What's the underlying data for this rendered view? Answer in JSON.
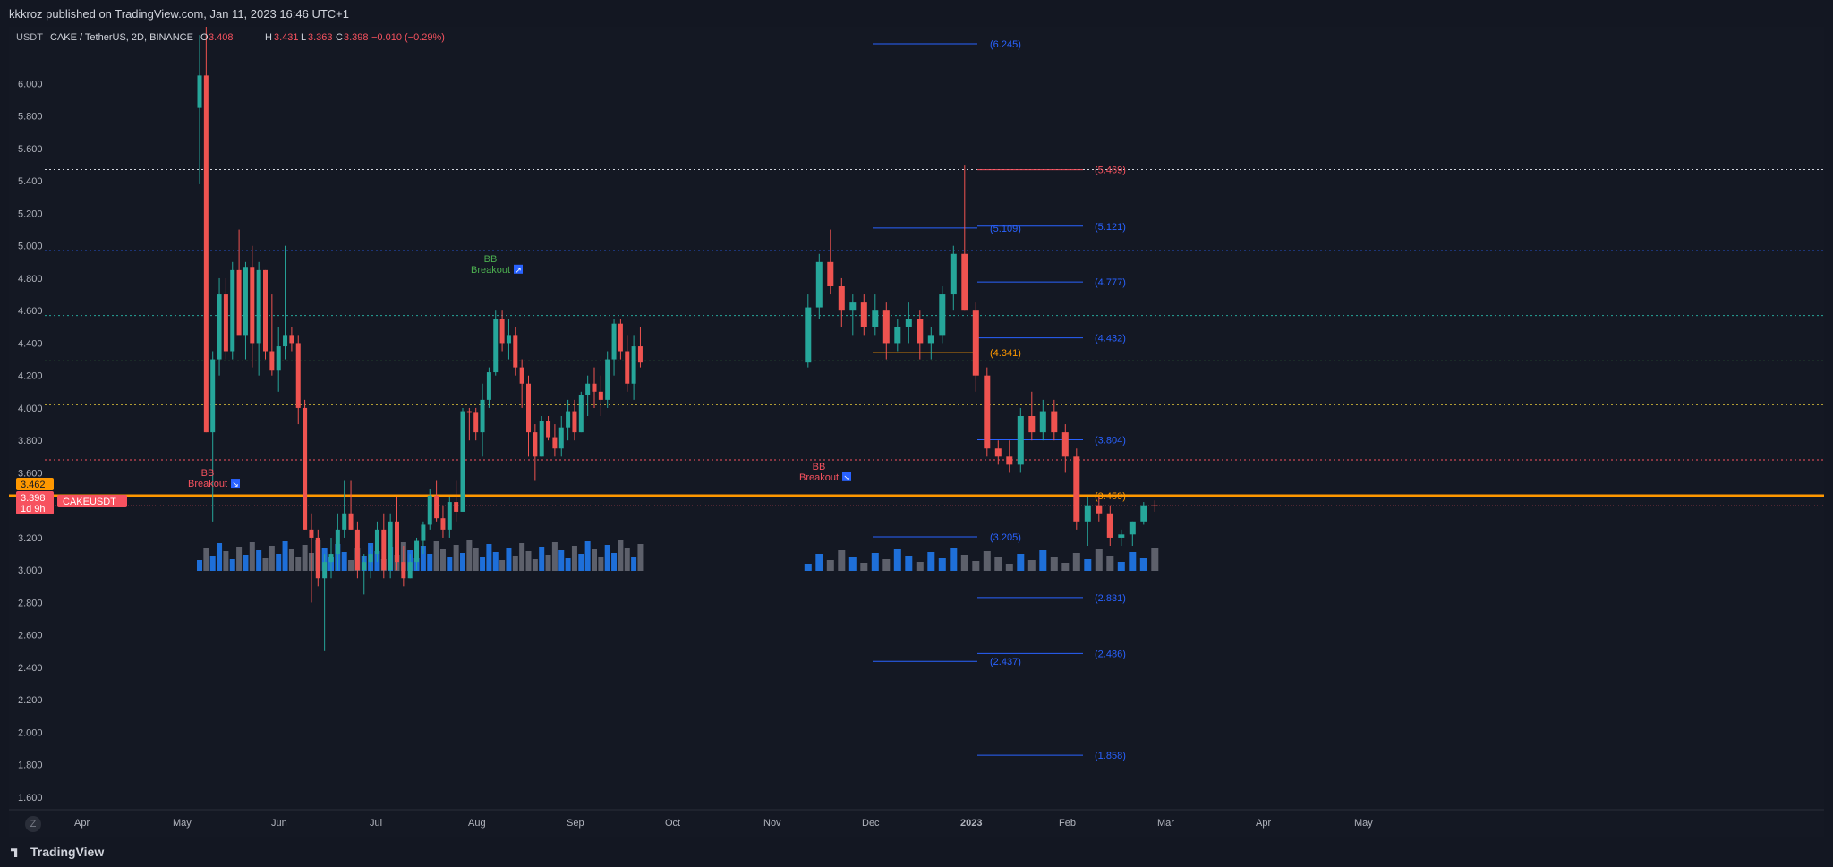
{
  "header": {
    "published": "kkkroz published on TradingView.com, Jan 11, 2023 16:46 UTC+1"
  },
  "legend": {
    "symbol": "CAKE / TetherUS, 2D, BINANCE",
    "o_label": "O",
    "o": "3.408",
    "h_label": "H",
    "h": "3.431",
    "l_label": "L",
    "l": "3.363",
    "c_label": "C",
    "c": "3.398",
    "change": "−0.010 (−0.29%)"
  },
  "price_axis": {
    "unit": "USDT",
    "marker_orange": "3.462",
    "marker_price": "3.398",
    "marker_countdown": "1d 9h",
    "symbol_tag": "CAKEUSDT"
  },
  "bottom": {
    "brand": "TradingView",
    "z_button": "Z"
  },
  "annotations": [
    {
      "text": "BB",
      "text2": "Breakout",
      "color": "#f7525f",
      "arrow": "↘"
    },
    {
      "text": "BB",
      "text2": "Breakout",
      "color": "#4caf50",
      "arrow": "↗"
    },
    {
      "text": "BB",
      "text2": "Breakout",
      "color": "#f7525f",
      "arrow": "↘"
    }
  ],
  "chart_data": {
    "type": "candlestick",
    "ylim": [
      1.55,
      6.35
    ],
    "y_ticks": [
      "6.000",
      "5.800",
      "5.600",
      "5.400",
      "5.200",
      "5.000",
      "4.800",
      "4.600",
      "4.400",
      "4.200",
      "4.000",
      "3.800",
      "3.600",
      "3.400",
      "3.200",
      "3.000",
      "2.800",
      "2.600",
      "2.400",
      "2.200",
      "2.000",
      "1.800",
      "1.600"
    ],
    "x_ticks": [
      "Apr",
      "May",
      "Jun",
      "Jul",
      "Aug",
      "Sep",
      "Oct",
      "Nov",
      "Dec",
      "2023",
      "Feb",
      "Mar",
      "Apr",
      "May"
    ],
    "horizontal_levels": [
      {
        "value": 5.47,
        "color": "#d1d4dc",
        "style": "dotted"
      },
      {
        "value": 4.97,
        "color": "#2962ff",
        "style": "dotted"
      },
      {
        "value": 4.57,
        "color": "#26a69a",
        "style": "dotted"
      },
      {
        "value": 4.29,
        "color": "#4caf50",
        "style": "dotted"
      },
      {
        "value": 4.02,
        "color": "#c9b037",
        "style": "dotted"
      },
      {
        "value": 3.68,
        "color": "#f7525f",
        "style": "dotted"
      },
      {
        "value": 3.459,
        "color": "#ff9800",
        "style": "solid"
      }
    ],
    "fib_levels_left": [
      {
        "label": "(6.245)",
        "value": 6.245,
        "color": "#2962ff"
      },
      {
        "label": "(5.109)",
        "value": 5.109,
        "color": "#2962ff"
      },
      {
        "label": "(4.341)",
        "value": 4.341,
        "color": "#ff9800"
      },
      {
        "label": "(3.205)",
        "value": 3.205,
        "color": "#2962ff"
      },
      {
        "label": "(2.437)",
        "value": 2.437,
        "color": "#2962ff"
      }
    ],
    "fib_levels_right": [
      {
        "label": "(5.469)",
        "value": 5.469,
        "color": "#f7525f"
      },
      {
        "label": "(5.121)",
        "value": 5.121,
        "color": "#2962ff"
      },
      {
        "label": "(4.777)",
        "value": 4.777,
        "color": "#2962ff"
      },
      {
        "label": "(4.432)",
        "value": 4.432,
        "color": "#2962ff"
      },
      {
        "label": "(3.459)",
        "value": 3.459,
        "color": "#ff9800"
      },
      {
        "label": "(3.804)",
        "value": 3.804,
        "color": "#2962ff"
      },
      {
        "label": "(2.831)",
        "value": 2.831,
        "color": "#2962ff"
      },
      {
        "label": "(2.486)",
        "value": 2.486,
        "color": "#2962ff"
      },
      {
        "label": "(1.858)",
        "value": 1.858,
        "color": "#2962ff"
      }
    ],
    "candles_approx": [
      [
        5.85,
        6.3,
        5.38,
        6.05
      ],
      [
        6.05,
        6.35,
        3.85,
        3.85
      ],
      [
        3.85,
        4.35,
        3.3,
        4.3
      ],
      [
        4.3,
        4.8,
        4.2,
        4.7
      ],
      [
        4.7,
        4.8,
        4.3,
        4.35
      ],
      [
        4.35,
        4.9,
        4.3,
        4.85
      ],
      [
        4.85,
        5.1,
        4.6,
        4.45
      ],
      [
        4.45,
        4.9,
        4.3,
        4.87
      ],
      [
        4.87,
        5.0,
        4.25,
        4.4
      ],
      [
        4.4,
        4.9,
        4.2,
        4.85
      ],
      [
        4.85,
        4.85,
        4.3,
        4.35
      ],
      [
        4.35,
        4.7,
        4.2,
        4.23
      ],
      [
        4.23,
        4.5,
        4.1,
        4.38
      ],
      [
        4.38,
        5.0,
        4.3,
        4.45
      ],
      [
        4.45,
        4.5,
        4.35,
        4.4
      ],
      [
        4.4,
        4.45,
        3.9,
        4.0
      ],
      [
        4.0,
        4.05,
        3.25,
        3.25
      ],
      [
        3.25,
        3.35,
        2.8,
        3.2
      ],
      [
        3.2,
        3.25,
        2.9,
        2.95
      ],
      [
        2.95,
        3.1,
        2.5,
        3.05
      ],
      [
        3.05,
        3.2,
        2.95,
        3.1
      ],
      [
        3.1,
        3.35,
        3.0,
        3.25
      ],
      [
        3.25,
        3.55,
        3.2,
        3.35
      ],
      [
        3.35,
        3.55,
        3.25,
        3.25
      ],
      [
        3.25,
        3.3,
        2.95,
        3.0
      ],
      [
        3.0,
        3.1,
        2.85,
        3.05
      ],
      [
        3.05,
        3.15,
        2.95,
        3.1
      ],
      [
        3.1,
        3.3,
        3.05,
        3.25
      ],
      [
        3.25,
        3.35,
        2.95,
        3.0
      ],
      [
        3.0,
        3.35,
        2.95,
        3.3
      ],
      [
        3.3,
        3.45,
        3.0,
        3.05
      ],
      [
        3.05,
        3.15,
        2.9,
        2.95
      ],
      [
        2.95,
        3.1,
        2.95,
        3.05
      ],
      [
        3.05,
        3.2,
        3.0,
        3.18
      ],
      [
        3.18,
        3.3,
        3.1,
        3.28
      ],
      [
        3.28,
        3.5,
        3.25,
        3.46
      ],
      [
        3.46,
        3.55,
        3.3,
        3.32
      ],
      [
        3.32,
        3.4,
        3.2,
        3.25
      ],
      [
        3.25,
        3.45,
        3.2,
        3.42
      ],
      [
        3.42,
        3.55,
        3.3,
        3.36
      ],
      [
        3.36,
        4.0,
        3.36,
        3.98
      ],
      [
        3.98,
        4.0,
        3.8,
        3.97
      ],
      [
        3.97,
        4.0,
        3.8,
        3.85
      ],
      [
        3.85,
        4.15,
        3.7,
        4.05
      ],
      [
        4.05,
        4.25,
        4.0,
        4.22
      ],
      [
        4.22,
        4.6,
        4.2,
        4.55
      ],
      [
        4.55,
        4.6,
        4.35,
        4.4
      ],
      [
        4.4,
        4.55,
        4.3,
        4.45
      ],
      [
        4.45,
        4.5,
        4.2,
        4.25
      ],
      [
        4.25,
        4.3,
        4.0,
        4.15
      ],
      [
        4.15,
        4.2,
        3.7,
        3.85
      ],
      [
        3.85,
        3.9,
        3.55,
        3.7
      ],
      [
        3.7,
        3.95,
        3.7,
        3.92
      ],
      [
        3.92,
        3.95,
        3.8,
        3.82
      ],
      [
        3.82,
        3.9,
        3.7,
        3.75
      ],
      [
        3.75,
        3.95,
        3.7,
        3.88
      ],
      [
        3.88,
        4.05,
        3.8,
        3.98
      ],
      [
        3.98,
        4.05,
        3.8,
        3.85
      ],
      [
        3.85,
        4.1,
        3.85,
        4.08
      ],
      [
        4.08,
        4.2,
        3.95,
        4.15
      ],
      [
        4.15,
        4.25,
        4.0,
        4.1
      ],
      [
        4.1,
        4.2,
        3.95,
        4.05
      ],
      [
        4.05,
        4.35,
        4.0,
        4.3
      ],
      [
        4.3,
        4.55,
        4.2,
        4.52
      ],
      [
        4.52,
        4.55,
        4.3,
        4.35
      ],
      [
        4.35,
        4.45,
        4.1,
        4.15
      ],
      [
        4.15,
        4.45,
        4.05,
        4.38
      ],
      [
        4.38,
        4.5,
        4.25,
        4.28
      ]
    ]
  }
}
